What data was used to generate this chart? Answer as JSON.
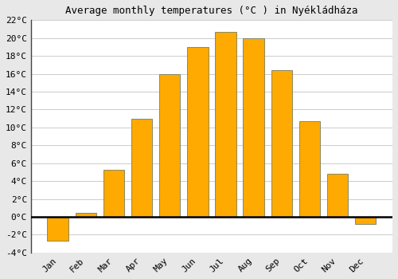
{
  "title": "Average monthly temperatures (°C ) in Nyékládháza",
  "months": [
    "Jan",
    "Feb",
    "Mar",
    "Apr",
    "May",
    "Jun",
    "Jul",
    "Aug",
    "Sep",
    "Oct",
    "Nov",
    "Dec"
  ],
  "values": [
    -2.7,
    0.4,
    5.3,
    11.0,
    16.0,
    19.0,
    20.7,
    20.0,
    16.4,
    10.7,
    4.8,
    -0.8
  ],
  "bar_color": "#FFAA00",
  "bar_edge_color": "#888866",
  "ylim": [
    -4,
    22
  ],
  "yticks": [
    -4,
    -2,
    0,
    2,
    4,
    6,
    8,
    10,
    12,
    14,
    16,
    18,
    20,
    22
  ],
  "plot_bg_color": "#ffffff",
  "fig_bg_color": "#e8e8e8",
  "grid_color": "#cccccc",
  "title_fontsize": 9,
  "tick_fontsize": 8,
  "zero_line_color": "#000000",
  "left_spine_color": "#444444"
}
